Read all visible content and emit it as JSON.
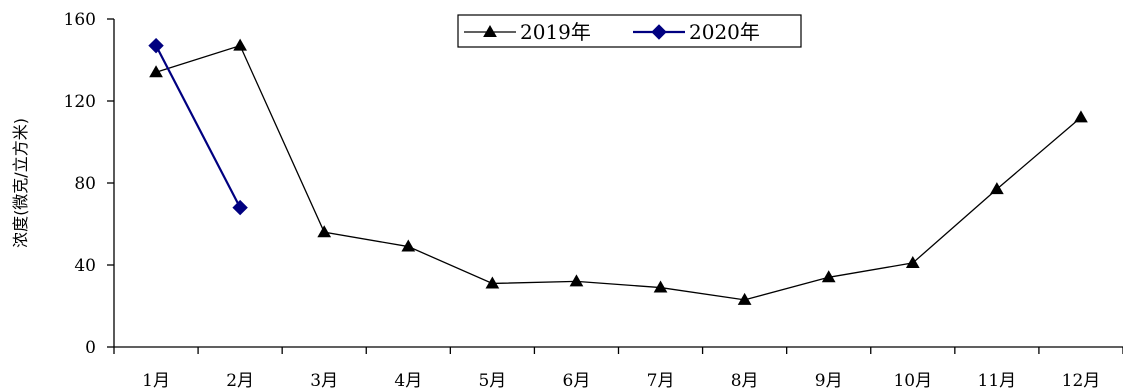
{
  "chart_data": {
    "type": "line",
    "categories": [
      "1月",
      "2月",
      "3月",
      "4月",
      "5月",
      "6月",
      "7月",
      "8月",
      "9月",
      "10月",
      "11月",
      "12月"
    ],
    "ylabel": "浓度(微克/立方米)",
    "ylim": [
      0,
      160
    ],
    "yticks": [
      0,
      40,
      80,
      120,
      160
    ],
    "grid": false,
    "legend_position": "top-center",
    "series": [
      {
        "name": "2019年",
        "color": "#000000",
        "marker": "triangle",
        "values": [
          134,
          147,
          56,
          49,
          31,
          32,
          29,
          23,
          34,
          41,
          77,
          112
        ]
      },
      {
        "name": "2020年",
        "color": "#000080",
        "marker": "diamond",
        "values": [
          147,
          68,
          null,
          null,
          null,
          null,
          null,
          null,
          null,
          null,
          null,
          null
        ]
      }
    ]
  }
}
